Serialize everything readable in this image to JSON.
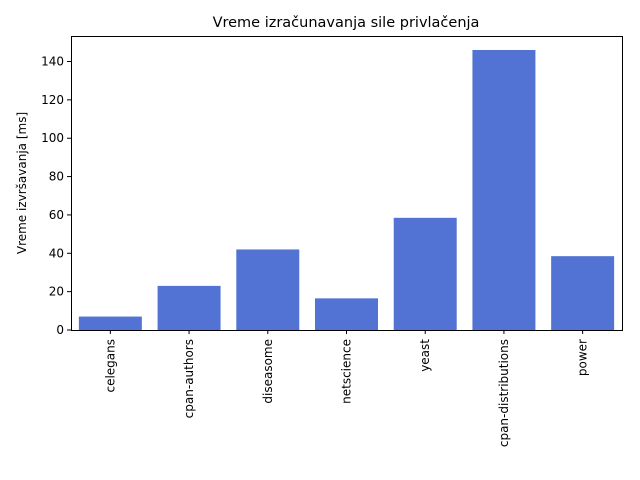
{
  "chart_data": {
    "type": "bar",
    "title": "Vreme izračunavanja sile privlačenja",
    "xlabel": "",
    "ylabel": "Vreme izvršavanja [ms]",
    "categories": [
      "celegans",
      "cpan-authors",
      "diseasome",
      "netscience",
      "yeast",
      "cpan-distributions",
      "power"
    ],
    "values": [
      7,
      23,
      42,
      16.5,
      58.5,
      146,
      38.5
    ],
    "ylim": [
      0,
      153.3
    ],
    "yticks": [
      0,
      20,
      40,
      60,
      80,
      100,
      120,
      140
    ],
    "bar_color": "#5273d3",
    "grid": false,
    "legend": "none"
  }
}
